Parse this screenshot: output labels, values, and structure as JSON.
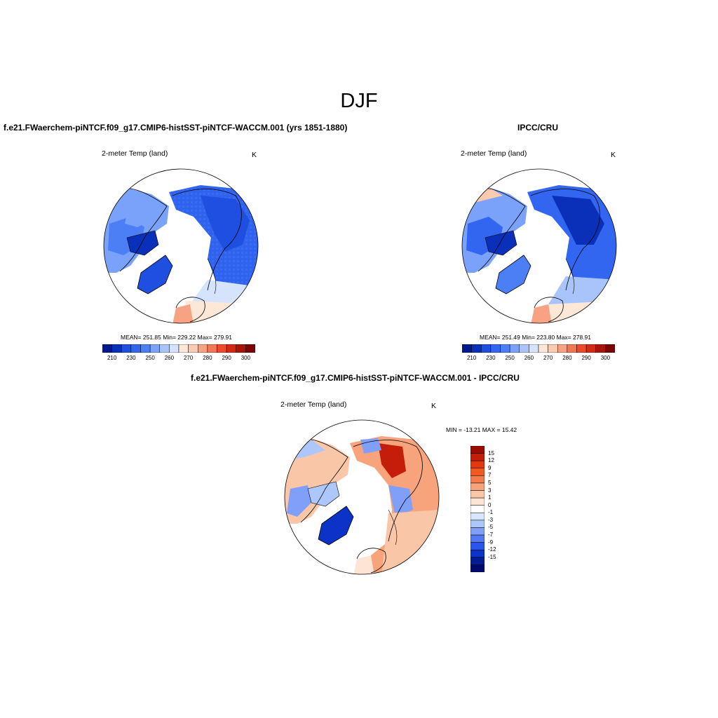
{
  "page_title": "DJF",
  "panels": {
    "model": {
      "title": "f.e21.FWaerchem-piNTCF.f09_g17.CMIP6-histSST-piNTCF-WACCM.001 (yrs 1851-1880)",
      "var_label": "2-meter Temp (land)",
      "units": "K",
      "stats": "MEAN= 251.85   Min= 229.22   Max= 279.91",
      "colorbar_ticks": [
        "210",
        "230",
        "250",
        "260",
        "270",
        "280",
        "290",
        "300"
      ],
      "palette": [
        "#001a8c",
        "#0a2fb8",
        "#1f4fe0",
        "#3366f0",
        "#4c7ef5",
        "#7aa2fa",
        "#a9c4fb",
        "#d5e3fd",
        "#fde8d8",
        "#fbcbb0",
        "#f7a283",
        "#f47755",
        "#ee4a2a",
        "#d42a14",
        "#a8140a",
        "#7a0505"
      ]
    },
    "obs": {
      "title": "IPCC/CRU",
      "var_label": "2-meter Temp (land)",
      "units": "K",
      "stats": "MEAN= 251.49   Min= 223.80   Max= 278.91",
      "colorbar_ticks": [
        "210",
        "230",
        "250",
        "260",
        "270",
        "280",
        "290",
        "300"
      ]
    },
    "diff": {
      "title": "f.e21.FWaerchem-piNTCF.f09_g17.CMIP6-histSST-piNTCF-WACCM.001 - IPCC/CRU",
      "var_label": "2-meter Temp (land)",
      "units": "K",
      "stats": "MIN = -13.21  MAX =  15.42",
      "colorbar_labels": [
        "15",
        "12",
        "9",
        "7",
        "5",
        "3",
        "1",
        "0",
        "-1",
        "-3",
        "-5",
        "-7",
        "-9",
        "-12",
        "-15"
      ],
      "palette": [
        "#9a0d03",
        "#c41e0a",
        "#e2380f",
        "#f05a23",
        "#f47c4b",
        "#f7a47c",
        "#fac6a8",
        "#fde5d6",
        "#ffffff",
        "#d7e5fd",
        "#adc7fb",
        "#809ff9",
        "#5278f5",
        "#2a55ea",
        "#0b33c8",
        "#021d93",
        "#000a6e"
      ]
    }
  }
}
